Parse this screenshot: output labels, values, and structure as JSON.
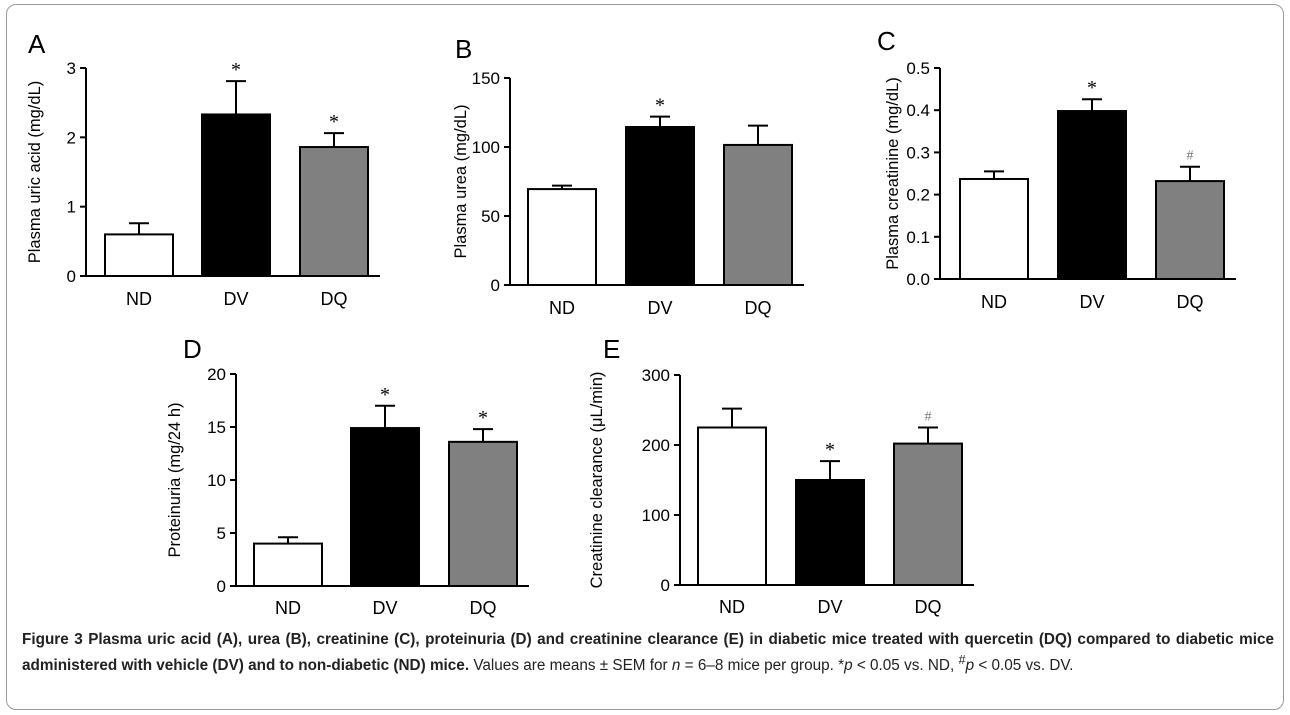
{
  "chart_data": [
    {
      "panel": "A",
      "type": "bar",
      "categories": [
        "ND",
        "DV",
        "DQ"
      ],
      "values": [
        0.6,
        2.33,
        1.86
      ],
      "errors": [
        0.16,
        0.48,
        0.2
      ],
      "annotations": [
        "",
        "*",
        "*"
      ],
      "ylabel": "Plasma uric acid (mg/dL)",
      "ylim": [
        0,
        3
      ],
      "yticks": [
        0,
        1,
        2,
        3
      ],
      "ytick_labels": [
        "0",
        "1",
        "2",
        "3"
      ]
    },
    {
      "panel": "B",
      "type": "bar",
      "categories": [
        "ND",
        "DV",
        "DQ"
      ],
      "values": [
        69.5,
        114.5,
        101.5
      ],
      "errors": [
        2.5,
        7.5,
        14
      ],
      "annotations": [
        "",
        "*",
        ""
      ],
      "ylabel": "Plasma urea (mg/dL)",
      "ylim": [
        0,
        150
      ],
      "yticks": [
        0,
        50,
        100,
        150
      ],
      "ytick_labels": [
        "0",
        "50",
        "100",
        "150"
      ]
    },
    {
      "panel": "C",
      "type": "bar",
      "categories": [
        "ND",
        "DV",
        "DQ"
      ],
      "values": [
        0.237,
        0.398,
        0.232
      ],
      "errors": [
        0.018,
        0.028,
        0.034
      ],
      "annotations": [
        "",
        "*",
        "#"
      ],
      "ylabel": "Plasma creatinine (mg/dL)",
      "ylim": [
        0,
        0.5
      ],
      "yticks": [
        0,
        0.1,
        0.2,
        0.3,
        0.4,
        0.5
      ],
      "ytick_labels": [
        "0.0",
        "0.1",
        "0.2",
        "0.3",
        "0.4",
        "0.5"
      ]
    },
    {
      "panel": "D",
      "type": "bar",
      "categories": [
        "ND",
        "DV",
        "DQ"
      ],
      "values": [
        4.0,
        14.9,
        13.6
      ],
      "errors": [
        0.6,
        2.1,
        1.2
      ],
      "annotations": [
        "",
        "*",
        "*"
      ],
      "ylabel": "Proteinuria (mg/24 h)",
      "ylim": [
        0,
        20
      ],
      "yticks": [
        0,
        5,
        10,
        15,
        20
      ],
      "ytick_labels": [
        "0",
        "5",
        "10",
        "15",
        "20"
      ]
    },
    {
      "panel": "E",
      "type": "bar",
      "categories": [
        "ND",
        "DV",
        "DQ"
      ],
      "values": [
        225,
        150,
        202
      ],
      "errors": [
        27,
        27,
        23
      ],
      "annotations": [
        "",
        "*",
        "#"
      ],
      "ylabel": "Creatinine clearance (μL/min)",
      "ylim": [
        0,
        300
      ],
      "yticks": [
        0,
        100,
        200,
        300
      ],
      "ytick_labels": [
        "0",
        "100",
        "200",
        "300"
      ]
    }
  ],
  "colors": {
    "ND": "#ffffff",
    "DV": "#000000",
    "DQ": "#808080",
    "frame": "#9a9a9a"
  },
  "caption": {
    "label": "Figure 3",
    "title": "Plasma uric acid (A), urea (B), creatinine (C), proteinuria (D) and creatinine clearance (E) in diabetic mice treated with quercetin (DQ) compared to diabetic mice administered with vehicle (DV) and to non-diabetic (ND) mice.",
    "text1": "Values are means ± SEM for",
    "n_symbol": "n",
    "text2": "= 6–8 mice per group. *",
    "p_symbol_1": "p",
    "text3": "< 0.05 vs. ND,",
    "hash": "#",
    "p_symbol_2": "p",
    "text4": "< 0.05 vs. DV."
  }
}
